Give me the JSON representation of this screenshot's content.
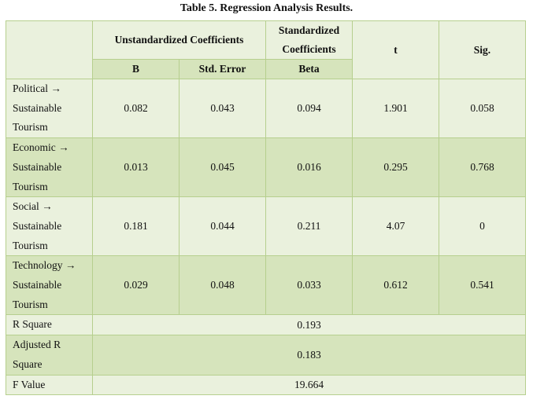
{
  "title": "Table 5. Regression Analysis Results.",
  "header": {
    "unstd": "Unstandardized Coefficients",
    "std_line1": "Standardized",
    "std_line2": "Coefficients",
    "t": "t",
    "sig": "Sig.",
    "b": "B",
    "se": "Std. Error",
    "beta": "Beta"
  },
  "rows": [
    {
      "l1": "Political →",
      "l2": "Sustainable",
      "l3": "Tourism",
      "b": "0.082",
      "se": "0.043",
      "beta": "0.094",
      "t": "1.901",
      "sig": "0.058"
    },
    {
      "l1": "Economic →",
      "l2": "Sustainable",
      "l3": "Tourism",
      "b": "0.013",
      "se": "0.045",
      "beta": "0.016",
      "t": "0.295",
      "sig": "0.768"
    },
    {
      "l1": "Social →",
      "l2": "Sustainable",
      "l3": "Tourism",
      "b": "0.181",
      "se": "0.044",
      "beta": "0.211",
      "t": "4.07",
      "sig": "0"
    },
    {
      "l1": "Technology →",
      "l2": "Sustainable",
      "l3": "Tourism",
      "b": "0.029",
      "se": "0.048",
      "beta": "0.033",
      "t": "0.612",
      "sig": "0.541"
    }
  ],
  "summary": {
    "r2_label": "R Square",
    "r2": "0.193",
    "adj_l1": "Adjusted R",
    "adj_l2": "Square",
    "adj": "0.183",
    "f_label": "F Value",
    "f": "19.664"
  }
}
